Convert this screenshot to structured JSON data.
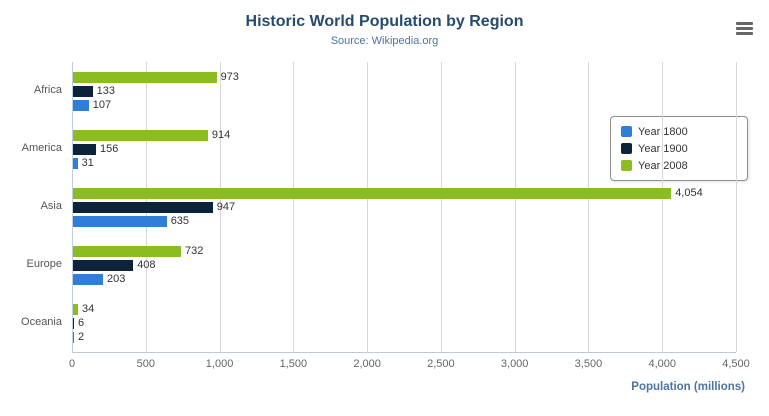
{
  "title": "Historic World Population by Region",
  "subtitle": "Source: Wikipedia.org",
  "export_menu_icon": "hamburger-icon",
  "chart_data": {
    "type": "bar",
    "orientation": "horizontal",
    "title": "Historic World Population by Region",
    "subtitle": "Source: Wikipedia.org",
    "categories": [
      "Africa",
      "America",
      "Asia",
      "Europe",
      "Oceania"
    ],
    "series": [
      {
        "name": "Year 1800",
        "color": "#2f7ed8",
        "values": [
          107,
          31,
          635,
          203,
          2
        ]
      },
      {
        "name": "Year 1900",
        "color": "#0d233a",
        "values": [
          133,
          156,
          947,
          408,
          6
        ]
      },
      {
        "name": "Year 2008",
        "color": "#8bbc21",
        "values": [
          973,
          914,
          4054,
          732,
          34
        ]
      }
    ],
    "draw_order_top_to_bottom": [
      "Year 2008",
      "Year 1900",
      "Year 1800"
    ],
    "xlim": [
      0,
      4500
    ],
    "xticks": [
      0,
      500,
      1000,
      1500,
      2000,
      2500,
      3000,
      3500,
      4000,
      4500
    ],
    "xtick_labels": [
      "0",
      "500",
      "1,000",
      "1,500",
      "2,000",
      "2,500",
      "3,000",
      "3,500",
      "4,000",
      "4,500"
    ],
    "xlabel": "Population (millions)",
    "data_labels": true,
    "grid": true,
    "legend_position": "right"
  }
}
